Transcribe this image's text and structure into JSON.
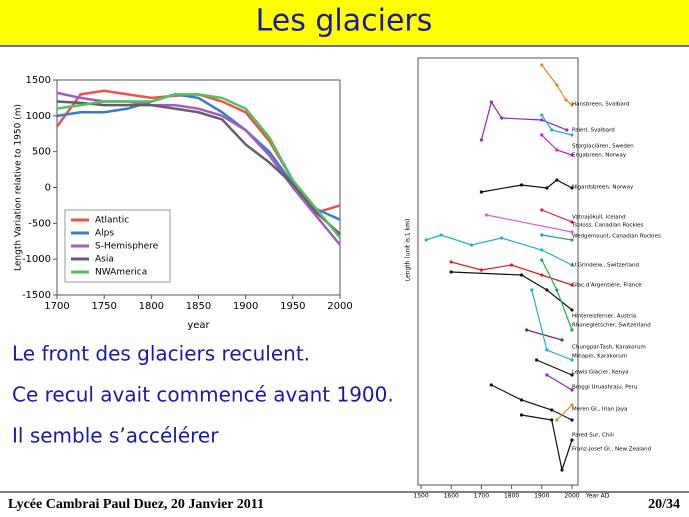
{
  "title": "Les glaciers",
  "chart_data": [
    {
      "type": "line",
      "ylabel": "Length Variation relative to 1950 (m)",
      "xlabel": "year",
      "x": [
        1700,
        1725,
        1750,
        1775,
        1800,
        1825,
        1850,
        1875,
        1900,
        1925,
        1950,
        1975,
        2000
      ],
      "xlim": [
        1700,
        2000
      ],
      "xticks": [
        1700,
        1750,
        1800,
        1850,
        1900,
        1950,
        2000
      ],
      "ylim": [
        -1500,
        1500
      ],
      "yticks": [
        -1500,
        -1000,
        -500,
        0,
        500,
        1000,
        1500
      ],
      "legend": "lower left",
      "series": [
        {
          "name": "Atlantic",
          "color": "#e8554a",
          "values": [
            850,
            1300,
            1350,
            1300,
            1250,
            1280,
            1300,
            1200,
            1050,
            650,
            100,
            -350,
            -250
          ]
        },
        {
          "name": "Alps",
          "color": "#3a7fc1",
          "values": [
            1000,
            1050,
            1050,
            1100,
            1200,
            1300,
            1250,
            1050,
            800,
            500,
            50,
            -300,
            -450
          ]
        },
        {
          "name": "S-Hemisphere",
          "color": "#a05ec4",
          "values": [
            1320,
            1250,
            1200,
            1200,
            1150,
            1150,
            1100,
            1000,
            800,
            450,
            0,
            -400,
            -800
          ]
        },
        {
          "name": "Asia",
          "color": "#6b5a6e",
          "values": [
            1200,
            1180,
            1150,
            1150,
            1150,
            1100,
            1050,
            950,
            600,
            350,
            50,
            -350,
            -650
          ]
        },
        {
          "name": "NWAmerica",
          "color": "#52c25a",
          "values": [
            1100,
            1150,
            1200,
            1200,
            1200,
            1300,
            1300,
            1250,
            1100,
            700,
            100,
            -300,
            -700
          ]
        }
      ]
    },
    {
      "type": "line",
      "ylabel": "Length (unit is 1 km)",
      "xlabel": "Year AD",
      "xlim": [
        1490,
        2020
      ],
      "xticks": [
        1500,
        1600,
        1700,
        1800,
        1900,
        2000
      ],
      "ylim": [
        0,
        42.7
      ],
      "series": [
        {
          "name": "Hansbreen, Svalbard",
          "color": "#e08a1e",
          "x": [
            1900,
            1950,
            1980,
            2000
          ],
          "values": [
            42,
            40,
            38.5,
            38
          ]
        },
        {
          "name": "Paierl, Svalbard",
          "color": "#a020c0",
          "x": [
            1700,
            1733,
            1767,
            1900,
            1983
          ],
          "values": [
            34.5,
            38.3,
            36.7,
            36.5,
            35.5
          ]
        },
        {
          "name": "Storglaciären, Sweden",
          "color": "#20b0c8",
          "x": [
            1900,
            1933,
            2000
          ],
          "values": [
            37,
            35.5,
            35
          ]
        },
        {
          "name": "Engabreen, Norway",
          "color": "#d020c0",
          "x": [
            1900,
            1950,
            2000
          ],
          "values": [
            35,
            33.5,
            33
          ]
        },
        {
          "name": "Nigardsbreen, Norway",
          "color": "#111111",
          "x": [
            1700,
            1833,
            1917,
            1950,
            2000
          ],
          "values": [
            29.3,
            30,
            29.7,
            30.5,
            29.7
          ]
        },
        {
          "name": "Vatnajökull, Iceland",
          "color": "#e02040",
          "x": [
            1900,
            2000
          ],
          "values": [
            27.5,
            26.3
          ]
        },
        {
          "name": "Tsoloss, Canadian Rockies",
          "color": "#e060d0",
          "x": [
            1717,
            2000
          ],
          "values": [
            27,
            25.3
          ]
        },
        {
          "name": "Wedgemount, Canadian Rockies",
          "color": "#20a0a0",
          "x": [
            1900,
            2000
          ],
          "values": [
            25,
            24.5
          ]
        },
        {
          "name": "U.Grindelw., Switzerland",
          "color": "#20b0d0",
          "x": [
            1517,
            1567,
            1667,
            1767,
            1900,
            2000
          ],
          "values": [
            24.5,
            25,
            24,
            24.7,
            23.5,
            22
          ]
        },
        {
          "name": "Glac.d'Argentière, France",
          "color": "#e02020",
          "x": [
            1600,
            1700,
            1800,
            1900,
            2000
          ],
          "values": [
            22.3,
            21.5,
            22,
            21,
            20
          ]
        },
        {
          "name": "Hintereisferner, Austria",
          "color": "#111111",
          "x": [
            1600,
            1833,
            1917,
            2000
          ],
          "values": [
            21.3,
            21,
            19.5,
            17.5
          ]
        },
        {
          "name": "Rhonegletscher, Switzerland",
          "color": "#20b040",
          "x": [
            1900,
            1950,
            2000
          ],
          "values": [
            22.5,
            19.5,
            15.5
          ]
        },
        {
          "name": "Chungpar-Tash, Karakorum",
          "color": "#7020a0",
          "x": [
            1850,
            1967
          ],
          "values": [
            15.5,
            14.5
          ]
        },
        {
          "name": "Minapin, Karakorum",
          "color": "#20b0d0",
          "x": [
            1867,
            1917,
            2000
          ],
          "values": [
            19.5,
            13.5,
            12.5
          ]
        },
        {
          "name": "Lewis Glacier, Kenya",
          "color": "#111111",
          "x": [
            1883,
            2000
          ],
          "values": [
            12.5,
            11
          ]
        },
        {
          "name": "Broggi Uruashraju, Peru",
          "color": "#a020c0",
          "x": [
            1917,
            2000
          ],
          "values": [
            11,
            9.5
          ]
        },
        {
          "name": "Meren Gl., Irian Jaya",
          "color": "#111111",
          "x": [
            1733,
            1833,
            1933,
            2000
          ],
          "values": [
            10,
            8.5,
            7.5,
            6.5
          ]
        },
        {
          "name": "Pared Sur, Chili",
          "color": "#e08a1e",
          "x": [
            1950,
            2000
          ],
          "values": [
            6.5,
            8
          ]
        },
        {
          "name": "Franz-Josef Gl., New Zealand",
          "color": "#111111",
          "x": [
            1833,
            1933,
            1967,
            2000
          ],
          "values": [
            7,
            6.5,
            1.5,
            4.5
          ]
        }
      ]
    }
  ],
  "text": [
    "Le front des glaciers reculent.",
    "Ce recul avait commencé avant 1900.",
    "Il semble s’accélérer"
  ],
  "footer": {
    "left": "Lycée Cambrai Paul Duez, 20 Janvier 2011",
    "right": "20/34"
  }
}
